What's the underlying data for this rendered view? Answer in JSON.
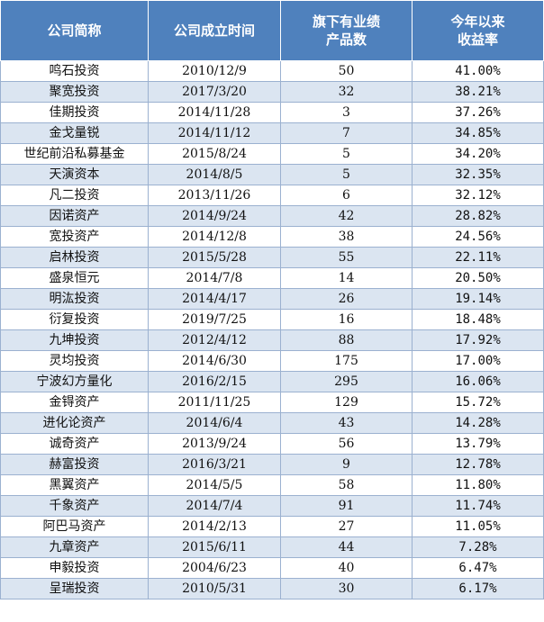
{
  "header": {
    "name": "公司简称",
    "founded": "公司成立时间",
    "products_line1": "旗下有业绩",
    "products_line2": "产品数",
    "return_line1": "今年以来",
    "return_line2": "收益率"
  },
  "colors": {
    "header_bg": "#4f81bd",
    "header_text": "#ffffff",
    "row_stripe": "#dbe5f1",
    "row_plain": "#ffffff"
  },
  "rows": [
    {
      "name": "鸣石投资",
      "founded": "2010/12/9",
      "products": "50",
      "ytd_return": "41.00%"
    },
    {
      "name": "聚宽投资",
      "founded": "2017/3/20",
      "products": "32",
      "ytd_return": "38.21%"
    },
    {
      "name": "佳期投资",
      "founded": "2014/11/28",
      "products": "3",
      "ytd_return": "37.26%"
    },
    {
      "name": "金戈量锐",
      "founded": "2014/11/12",
      "products": "7",
      "ytd_return": "34.85%"
    },
    {
      "name": "世纪前沿私募基金",
      "founded": "2015/8/24",
      "products": "5",
      "ytd_return": "34.20%"
    },
    {
      "name": "天演资本",
      "founded": "2014/8/5",
      "products": "5",
      "ytd_return": "32.35%"
    },
    {
      "name": "凡二投资",
      "founded": "2013/11/26",
      "products": "6",
      "ytd_return": "32.12%"
    },
    {
      "name": "因诺资产",
      "founded": "2014/9/24",
      "products": "42",
      "ytd_return": "28.82%"
    },
    {
      "name": "宽投资产",
      "founded": "2014/12/8",
      "products": "38",
      "ytd_return": "24.56%"
    },
    {
      "name": "启林投资",
      "founded": "2015/5/28",
      "products": "55",
      "ytd_return": "22.11%"
    },
    {
      "name": "盛泉恒元",
      "founded": "2014/7/8",
      "products": "14",
      "ytd_return": "20.50%"
    },
    {
      "name": "明汯投资",
      "founded": "2014/4/17",
      "products": "26",
      "ytd_return": "19.14%"
    },
    {
      "name": "衍复投资",
      "founded": "2019/7/25",
      "products": "16",
      "ytd_return": "18.48%"
    },
    {
      "name": "九坤投资",
      "founded": "2012/4/12",
      "products": "88",
      "ytd_return": "17.92%"
    },
    {
      "name": "灵均投资",
      "founded": "2014/6/30",
      "products": "175",
      "ytd_return": "17.00%"
    },
    {
      "name": "宁波幻方量化",
      "founded": "2016/2/15",
      "products": "295",
      "ytd_return": "16.06%"
    },
    {
      "name": "金锝资产",
      "founded": "2011/11/25",
      "products": "129",
      "ytd_return": "15.72%"
    },
    {
      "name": "进化论资产",
      "founded": "2014/6/4",
      "products": "43",
      "ytd_return": "14.28%"
    },
    {
      "name": "诚奇资产",
      "founded": "2013/9/24",
      "products": "56",
      "ytd_return": "13.79%"
    },
    {
      "name": "赫富投资",
      "founded": "2016/3/21",
      "products": "9",
      "ytd_return": "12.78%"
    },
    {
      "name": "黑翼资产",
      "founded": "2014/5/5",
      "products": "58",
      "ytd_return": "11.80%"
    },
    {
      "name": "千象资产",
      "founded": "2014/7/4",
      "products": "91",
      "ytd_return": "11.74%"
    },
    {
      "name": "阿巴马资产",
      "founded": "2014/2/13",
      "products": "27",
      "ytd_return": "11.05%"
    },
    {
      "name": "九章资产",
      "founded": "2015/6/11",
      "products": "44",
      "ytd_return": "7.28%"
    },
    {
      "name": "申毅投资",
      "founded": "2004/6/23",
      "products": "40",
      "ytd_return": "6.47%"
    },
    {
      "name": "呈瑞投资",
      "founded": "2010/5/31",
      "products": "30",
      "ytd_return": "6.17%"
    }
  ]
}
